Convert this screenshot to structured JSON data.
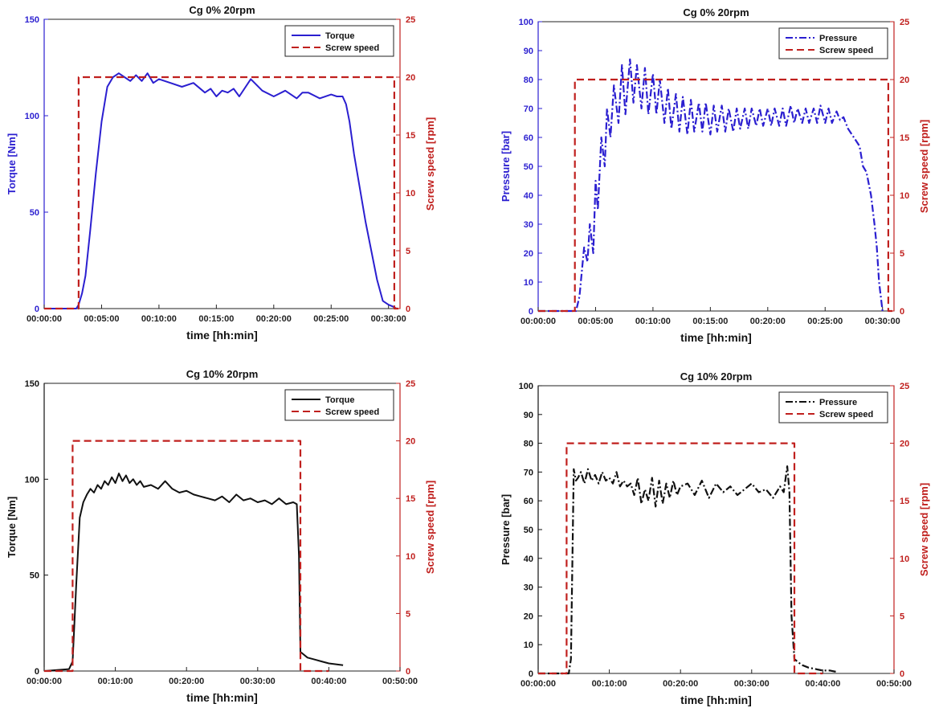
{
  "colors": {
    "blue": "#2b1fd0",
    "red": "#c0201e",
    "black": "#111111"
  },
  "chart_data": [
    {
      "type": "line",
      "title": "Cg 0% 20rpm",
      "xlabel": "time [hh:min]",
      "ylabel": "Torque [Nm]",
      "y2label": "Screw speed [rpm]",
      "ylim": [
        0,
        150
      ],
      "y2lim": [
        0,
        25
      ],
      "xlim_minutes": [
        0,
        31
      ],
      "yticks": [
        "0",
        "50",
        "100",
        "150"
      ],
      "y2ticks": [
        "0",
        "5",
        "10",
        "15",
        "20",
        "25"
      ],
      "xticks": [
        "00:00:00",
        "00:05:00",
        "00:10:00",
        "00:15:00",
        "00:20:00",
        "00:25:00",
        "00:30:00"
      ],
      "legend_position": "top-right",
      "left_axis_color": "blue",
      "series": [
        {
          "name": "Torque",
          "axis": "left",
          "color": "blue",
          "style": "solid",
          "x": [
            0,
            2.8,
            3.0,
            3.3,
            3.6,
            4.0,
            4.5,
            5.0,
            5.5,
            6.0,
            6.5,
            7.0,
            7.5,
            8.0,
            8.5,
            9.0,
            9.5,
            10.0,
            11.0,
            12.0,
            13.0,
            14.0,
            14.5,
            15.0,
            15.5,
            16.0,
            16.5,
            17.0,
            18.0,
            19.0,
            20.0,
            21.0,
            22.0,
            22.5,
            23.0,
            24.0,
            25.0,
            25.5,
            26.0,
            26.3,
            26.6,
            27.0,
            28.0,
            29.0,
            29.5,
            30.0,
            30.4,
            30.7
          ],
          "y": [
            0,
            0,
            2,
            8,
            17,
            40,
            70,
            97,
            115,
            120,
            122,
            120,
            118,
            121,
            118,
            122,
            117,
            119,
            117,
            115,
            117,
            112,
            114,
            110,
            113,
            112,
            114,
            110,
            119,
            113,
            110,
            113,
            109,
            112,
            112,
            109,
            111,
            110,
            110,
            106,
            97,
            80,
            45,
            15,
            4,
            2,
            1,
            0
          ]
        },
        {
          "name": "Screw speed",
          "axis": "right",
          "color": "red",
          "style": "dashed",
          "x": [
            0,
            3,
            3,
            30.5,
            30.5,
            31
          ],
          "y": [
            0,
            0,
            20,
            20,
            0,
            0
          ]
        }
      ]
    },
    {
      "type": "line",
      "title": "Cg 0% 20rpm",
      "xlabel": "time [hh:min]",
      "ylabel": "Pressure [bar]",
      "y2label": "Screw speed [rpm]",
      "ylim": [
        0,
        100
      ],
      "y2lim": [
        0,
        25
      ],
      "xlim_minutes": [
        0,
        31
      ],
      "yticks": [
        "0",
        "10",
        "20",
        "30",
        "40",
        "50",
        "60",
        "70",
        "80",
        "90",
        "100"
      ],
      "y2ticks": [
        "0",
        "5",
        "10",
        "15",
        "20",
        "25"
      ],
      "xticks": [
        "00:00:00",
        "00:05:00",
        "00:10:00",
        "00:15:00",
        "00:20:00",
        "00:25:00",
        "00:30:00"
      ],
      "legend_position": "top-right",
      "left_axis_color": "blue",
      "series": [
        {
          "name": "Pressure",
          "axis": "left",
          "color": "blue",
          "style": "dashdot",
          "x": [
            0,
            3.3,
            3.6,
            4.0,
            4.3,
            4.5,
            4.8,
            5.0,
            5.2,
            5.5,
            5.8,
            6.0,
            6.3,
            6.6,
            7.0,
            7.3,
            7.6,
            8.0,
            8.3,
            8.6,
            9.0,
            9.3,
            9.6,
            10.0,
            10.3,
            10.6,
            11.0,
            11.3,
            11.6,
            12.0,
            12.3,
            12.6,
            13.0,
            13.3,
            13.6,
            14.0,
            14.3,
            14.6,
            15.0,
            15.3,
            15.6,
            16.0,
            16.3,
            16.6,
            17.0,
            17.3,
            17.6,
            18.0,
            18.3,
            18.6,
            19.0,
            19.3,
            19.6,
            20.0,
            20.3,
            20.6,
            21.0,
            21.3,
            21.6,
            22.0,
            22.3,
            22.6,
            23.0,
            23.3,
            23.6,
            24.0,
            24.3,
            24.6,
            25.0,
            25.3,
            25.6,
            26.0,
            26.3,
            26.6,
            27.0,
            27.5,
            28.0,
            28.3,
            28.6,
            29.0,
            29.3,
            29.5,
            29.7,
            30.0
          ],
          "y": [
            0,
            0,
            5,
            22,
            17,
            30,
            20,
            45,
            35,
            60,
            50,
            70,
            60,
            78,
            65,
            85,
            68,
            87,
            72,
            85,
            70,
            84,
            68,
            82,
            68,
            80,
            65,
            77,
            63,
            75,
            62,
            74,
            61,
            73,
            62,
            72,
            62,
            72,
            61,
            71,
            62,
            71,
            62,
            70,
            62,
            70,
            63,
            70,
            63,
            70,
            64,
            70,
            64,
            70,
            64,
            70,
            64,
            70,
            64,
            71,
            65,
            70,
            65,
            70,
            65,
            70,
            65,
            71,
            65,
            70,
            65,
            69,
            66,
            67,
            63,
            60,
            57,
            50,
            48,
            40,
            30,
            22,
            10,
            0
          ]
        },
        {
          "name": "Screw speed",
          "axis": "right",
          "color": "red",
          "style": "dashed",
          "x": [
            0,
            3.2,
            3.2,
            30.5,
            30.5,
            31
          ],
          "y": [
            0,
            0,
            20,
            20,
            0,
            0
          ]
        }
      ]
    },
    {
      "type": "line",
      "title": "Cg 10% 20rpm",
      "xlabel": "time [hh:min]",
      "ylabel": "Torque [Nm]",
      "y2label": "Screw speed [rpm]",
      "ylim": [
        0,
        150
      ],
      "y2lim": [
        0,
        25
      ],
      "xlim_minutes": [
        0,
        50
      ],
      "yticks": [
        "0",
        "50",
        "100",
        "150"
      ],
      "y2ticks": [
        "0",
        "5",
        "10",
        "15",
        "20",
        "25"
      ],
      "xticks": [
        "00:00:00",
        "00:10:00",
        "00:20:00",
        "00:30:00",
        "00:40:00",
        "00:50:00"
      ],
      "legend_position": "top-right",
      "left_axis_color": "black",
      "series": [
        {
          "name": "Torque",
          "axis": "left",
          "color": "black",
          "style": "solid",
          "x": [
            0,
            3.5,
            4.0,
            4.5,
            5.0,
            5.5,
            6.0,
            6.5,
            7.0,
            7.5,
            8.0,
            8.5,
            9.0,
            9.5,
            10.0,
            10.5,
            11.0,
            11.5,
            12.0,
            12.5,
            13.0,
            13.5,
            14.0,
            15.0,
            16.0,
            17.0,
            18.0,
            19.0,
            20.0,
            21.0,
            22.0,
            23.0,
            24.0,
            25.0,
            26.0,
            27.0,
            28.0,
            29.0,
            30.0,
            31.0,
            32.0,
            33.0,
            34.0,
            35.0,
            35.5,
            35.8,
            36.0,
            37.0,
            38.0,
            39.0,
            40.0,
            41.0,
            42.0
          ],
          "y": [
            0,
            1,
            5,
            45,
            80,
            88,
            92,
            95,
            93,
            97,
            95,
            99,
            97,
            101,
            98,
            103,
            99,
            102,
            98,
            100,
            97,
            99,
            96,
            97,
            95,
            99,
            95,
            93,
            94,
            92,
            91,
            90,
            89,
            91,
            88,
            92,
            89,
            90,
            88,
            89,
            87,
            90,
            87,
            88,
            87,
            60,
            10,
            7,
            6,
            5,
            4,
            3.5,
            3
          ]
        },
        {
          "name": "Screw speed",
          "axis": "right",
          "color": "red",
          "style": "dashed",
          "x": [
            0,
            4,
            4,
            36,
            36,
            40
          ],
          "y": [
            0,
            0,
            20,
            20,
            0,
            0
          ]
        }
      ]
    },
    {
      "type": "line",
      "title": "Cg 10% 20rpm",
      "xlabel": "time [hh:min]",
      "ylabel": "Pressure [bar]",
      "y2label": "Screw speed [rpm]",
      "ylim": [
        0,
        100
      ],
      "y2lim": [
        0,
        25
      ],
      "xlim_minutes": [
        0,
        50
      ],
      "yticks": [
        "0",
        "10",
        "20",
        "30",
        "40",
        "50",
        "60",
        "70",
        "80",
        "90",
        "100"
      ],
      "y2ticks": [
        "0",
        "5",
        "10",
        "15",
        "20",
        "25"
      ],
      "xticks": [
        "00:00:00",
        "00:10:00",
        "00:20:00",
        "00:30:00",
        "00:40:00",
        "00:50:00"
      ],
      "legend_position": "top-right",
      "left_axis_color": "black",
      "series": [
        {
          "name": "Pressure",
          "axis": "left",
          "color": "black",
          "style": "dashdot",
          "x": [
            0,
            4.3,
            4.6,
            5.0,
            5.3,
            5.6,
            6.0,
            6.5,
            7.0,
            7.5,
            8.0,
            8.5,
            9.0,
            9.5,
            10.0,
            10.5,
            11.0,
            11.5,
            12.0,
            12.5,
            13.0,
            13.5,
            14.0,
            14.5,
            15.0,
            15.5,
            16.0,
            16.5,
            17.0,
            17.5,
            18.0,
            18.5,
            19.0,
            19.5,
            20.0,
            21.0,
            22.0,
            23.0,
            24.0,
            25.0,
            26.0,
            27.0,
            28.0,
            29.0,
            30.0,
            31.0,
            32.0,
            33.0,
            34.0,
            34.5,
            35.0,
            35.3,
            35.6,
            36.0,
            37.0,
            38.0,
            39.0,
            40.0,
            41.0,
            42.0
          ],
          "y": [
            0,
            0,
            5,
            71,
            67,
            68,
            70,
            66,
            71,
            67,
            69,
            66,
            70,
            67,
            68,
            66,
            70,
            65,
            67,
            65,
            66,
            62,
            68,
            59,
            64,
            60,
            68,
            58,
            67,
            59,
            66,
            61,
            67,
            62,
            65,
            66,
            62,
            67,
            61,
            66,
            63,
            65,
            62,
            64,
            66,
            63,
            64,
            61,
            65,
            63,
            72,
            63,
            20,
            5,
            3,
            2,
            1.5,
            1,
            1,
            0.5
          ]
        },
        {
          "name": "Screw speed",
          "axis": "right",
          "color": "red",
          "style": "dashed",
          "x": [
            0,
            4,
            4,
            36,
            36,
            40
          ],
          "y": [
            0,
            0,
            20,
            20,
            0,
            0
          ]
        }
      ]
    }
  ]
}
